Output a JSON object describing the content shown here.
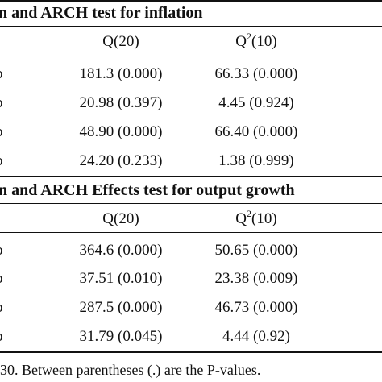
{
  "section1": {
    "title": "n and ARCH test for inflation",
    "col_q": "Q(20)",
    "col_q2_base": "Q",
    "col_q2_sup": "2",
    "col_q2_rest": "(10)",
    "row_stub": "o",
    "rows": [
      {
        "q": "181.3 (0.000)",
        "q2": "66.33 (0.000)"
      },
      {
        "q": "20.98 (0.397)",
        "q2": "4.45 (0.924)"
      },
      {
        "q": "48.90 (0.000)",
        "q2": "66.40 (0.000)"
      },
      {
        "q": "24.20 (0.233)",
        "q2": "1.38 (0.999)"
      }
    ]
  },
  "section2": {
    "title": "n and ARCH Effects test for output growth",
    "col_q": "Q(20)",
    "col_q2_base": "Q",
    "col_q2_sup": "2",
    "col_q2_rest": "(10)",
    "row_stub": "o",
    "rows": [
      {
        "q": "364.6 (0.000)",
        "q2": "50.65 (0.000)"
      },
      {
        "q": "37.51 (0.010)",
        "q2": "23.38 (0.009)"
      },
      {
        "q": "287.5 (0.000)",
        "q2": "46.73 (0.000)"
      },
      {
        "q": "31.79 (0.045)",
        "q2": "4.44 (0.92)"
      }
    ]
  },
  "footnote": "30. Between parentheses (.) are the P-values."
}
